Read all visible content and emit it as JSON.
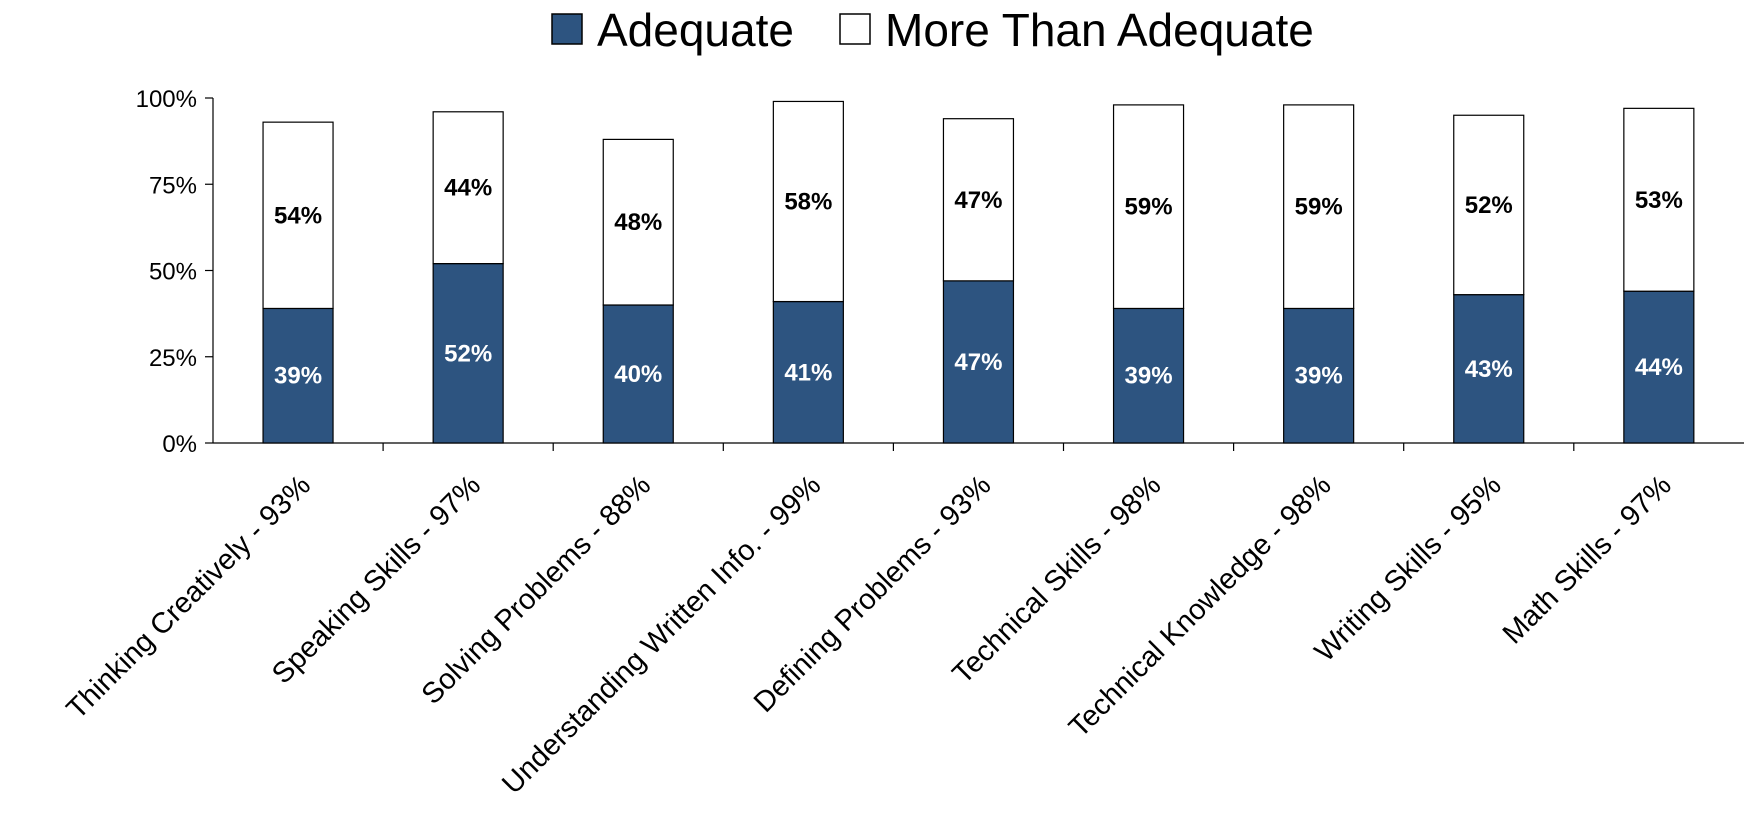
{
  "chart_data": {
    "type": "bar",
    "stacked": true,
    "categories": [
      "Thinking Creatively - 93%",
      "Speaking Skills - 97%",
      "Solving Problems - 88%",
      "Understanding Written Info. - 99%",
      "Defining Problems - 93%",
      "Technical Skills - 98%",
      "Technical Knowledge - 98%",
      "Writing Skills - 95%",
      "Math Skills - 97%"
    ],
    "series": [
      {
        "name": "Adequate",
        "color": "#2D5480",
        "values": [
          39,
          52,
          40,
          41,
          47,
          39,
          39,
          43,
          44
        ],
        "labels": [
          "39%",
          "52%",
          "40%",
          "41%",
          "47%",
          "39%",
          "39%",
          "43%",
          "44%"
        ]
      },
      {
        "name": "More Than Adequate",
        "color": "#FFFFFF",
        "values": [
          54,
          44,
          48,
          58,
          47,
          59,
          59,
          52,
          53
        ],
        "labels": [
          "54%",
          "44%",
          "48%",
          "58%",
          "47%",
          "59%",
          "59%",
          "52%",
          "53%"
        ]
      }
    ],
    "yticks": [
      "0%",
      "25%",
      "50%",
      "75%",
      "100%"
    ],
    "ylim": [
      0,
      100
    ],
    "grid": false,
    "legend_position": "top-center"
  }
}
